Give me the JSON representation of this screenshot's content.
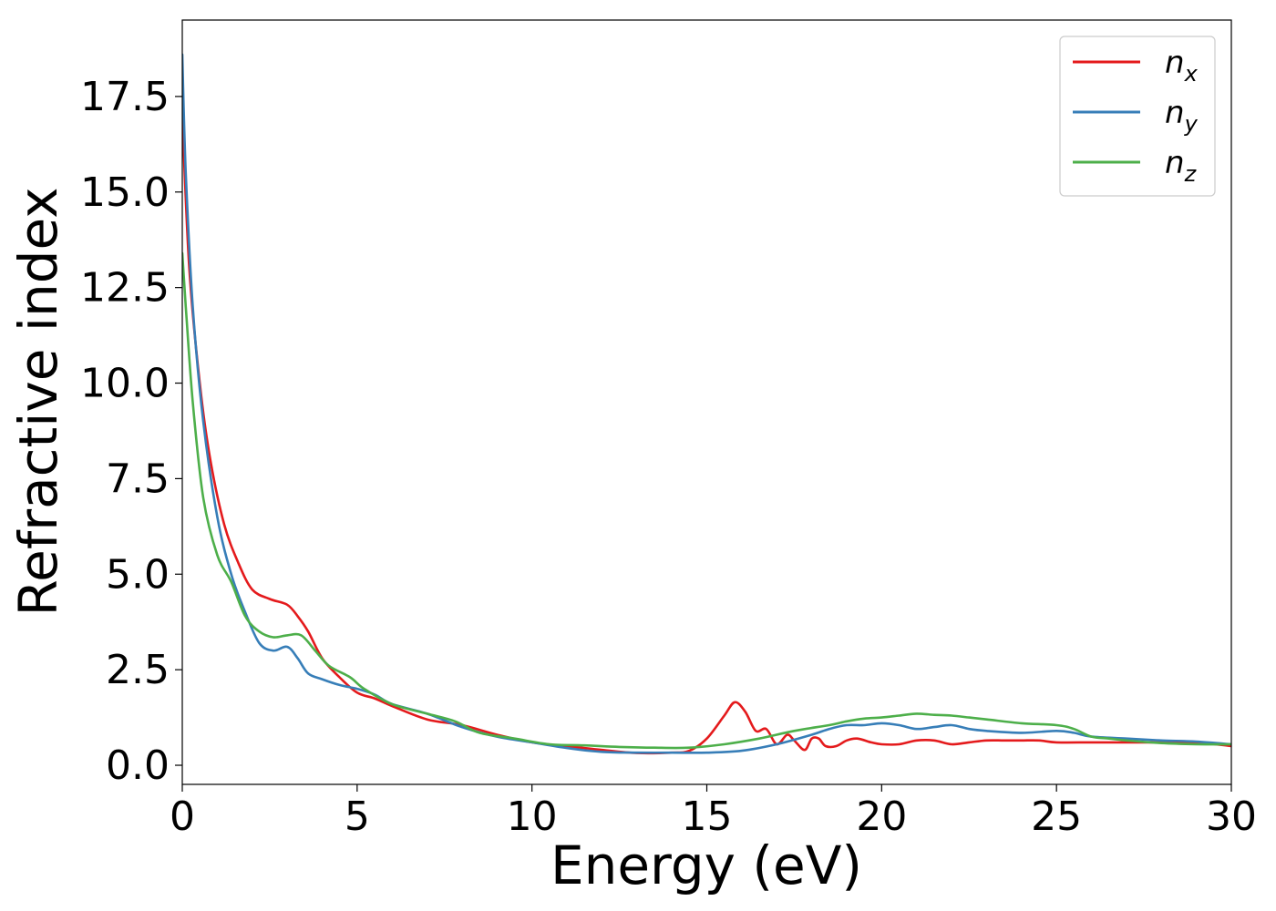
{
  "chart_data": {
    "type": "line",
    "xlabel": "Energy (eV)",
    "ylabel": "Refractive index",
    "xlim": [
      0,
      30
    ],
    "ylim": [
      -0.5,
      19.5
    ],
    "xticks": [
      0,
      5,
      10,
      15,
      20,
      25,
      30
    ],
    "xtick_labels": [
      "0",
      "5",
      "10",
      "15",
      "20",
      "25",
      "30"
    ],
    "yticks": [
      0,
      2.5,
      5,
      7.5,
      10,
      12.5,
      15,
      17.5
    ],
    "ytick_labels": [
      "0.0",
      "2.5",
      "5.0",
      "7.5",
      "10.0",
      "12.5",
      "15.0",
      "17.5"
    ],
    "grid": false,
    "legend_position": "top-right",
    "series": [
      {
        "name": "n_x",
        "label_base": "n",
        "label_sub": "x",
        "color": "#e41a1c",
        "x": [
          0,
          0.2,
          0.5,
          0.8,
          1.2,
          1.6,
          2.0,
          2.5,
          3.0,
          3.3,
          3.6,
          4.0,
          4.5,
          5.0,
          5.5,
          6.0,
          7.0,
          8.0,
          9.0,
          10.0,
          11.0,
          12.0,
          13.0,
          14.0,
          14.5,
          15.0,
          15.5,
          15.8,
          16.1,
          16.4,
          16.7,
          17.0,
          17.3,
          17.5,
          17.8,
          18.0,
          18.2,
          18.4,
          18.7,
          19.0,
          19.3,
          19.7,
          20.0,
          20.5,
          21.0,
          21.5,
          22.0,
          22.5,
          23.0,
          23.5,
          24.0,
          24.5,
          25.0,
          26.0,
          27.0,
          28.0,
          29.0,
          30.0
        ],
        "y": [
          17.0,
          13.0,
          10.0,
          8.0,
          6.3,
          5.3,
          4.6,
          4.35,
          4.2,
          3.9,
          3.5,
          2.8,
          2.3,
          1.9,
          1.75,
          1.55,
          1.2,
          1.05,
          0.8,
          0.6,
          0.5,
          0.4,
          0.32,
          0.33,
          0.38,
          0.7,
          1.3,
          1.65,
          1.4,
          0.9,
          0.95,
          0.55,
          0.8,
          0.65,
          0.4,
          0.7,
          0.7,
          0.5,
          0.5,
          0.65,
          0.7,
          0.6,
          0.55,
          0.55,
          0.65,
          0.65,
          0.55,
          0.6,
          0.65,
          0.65,
          0.65,
          0.65,
          0.6,
          0.6,
          0.6,
          0.6,
          0.6,
          0.5
        ]
      },
      {
        "name": "n_y",
        "label_base": "n",
        "label_sub": "y",
        "color": "#377eb8",
        "x": [
          0,
          0.1,
          0.3,
          0.6,
          1.0,
          1.4,
          1.8,
          2.2,
          2.6,
          3.0,
          3.3,
          3.6,
          4.0,
          4.5,
          5.0,
          5.5,
          6.0,
          7.0,
          8.0,
          9.0,
          10.0,
          11.0,
          12.0,
          13.0,
          14.0,
          15.0,
          16.0,
          17.0,
          18.0,
          18.5,
          19.0,
          19.5,
          20.0,
          20.5,
          21.0,
          21.5,
          22.0,
          22.5,
          23.0,
          24.0,
          25.0,
          25.5,
          26.0,
          27.0,
          28.0,
          29.0,
          30.0
        ],
        "y": [
          18.6,
          15.5,
          12.0,
          9.0,
          6.5,
          5.0,
          4.0,
          3.2,
          3.0,
          3.1,
          2.8,
          2.4,
          2.25,
          2.1,
          2.0,
          1.85,
          1.6,
          1.35,
          1.0,
          0.75,
          0.6,
          0.45,
          0.35,
          0.33,
          0.33,
          0.33,
          0.38,
          0.55,
          0.8,
          0.95,
          1.05,
          1.05,
          1.1,
          1.05,
          0.95,
          1.0,
          1.05,
          0.95,
          0.9,
          0.85,
          0.9,
          0.85,
          0.75,
          0.7,
          0.65,
          0.62,
          0.55
        ]
      },
      {
        "name": "n_z",
        "label_base": "n",
        "label_sub": "z",
        "color": "#4daf4a",
        "x": [
          0,
          0.1,
          0.3,
          0.6,
          1.0,
          1.4,
          1.8,
          2.2,
          2.6,
          3.0,
          3.4,
          3.8,
          4.2,
          4.8,
          5.2,
          6.0,
          7.0,
          7.8,
          8.5,
          9.5,
          10.5,
          11.5,
          12.5,
          13.5,
          14.5,
          15.5,
          16.5,
          17.5,
          18.5,
          19.0,
          19.5,
          20.0,
          20.5,
          21.0,
          21.5,
          22.0,
          22.5,
          23.0,
          24.0,
          25.0,
          25.5,
          26.0,
          26.5,
          27.0,
          28.0,
          29.0,
          30.0
        ],
        "y": [
          13.4,
          12.0,
          9.5,
          7.0,
          5.5,
          4.8,
          3.9,
          3.5,
          3.35,
          3.4,
          3.4,
          3.0,
          2.6,
          2.3,
          2.0,
          1.6,
          1.35,
          1.15,
          0.85,
          0.7,
          0.55,
          0.52,
          0.48,
          0.46,
          0.46,
          0.55,
          0.7,
          0.9,
          1.05,
          1.15,
          1.22,
          1.25,
          1.3,
          1.35,
          1.32,
          1.3,
          1.25,
          1.2,
          1.1,
          1.05,
          0.95,
          0.75,
          0.7,
          0.65,
          0.58,
          0.55,
          0.55
        ]
      }
    ]
  }
}
